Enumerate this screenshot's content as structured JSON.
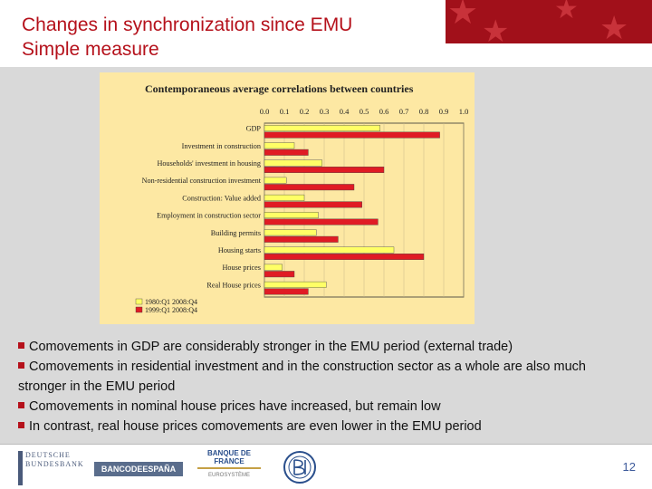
{
  "slide": {
    "title_line1": "Changes in synchronization since EMU",
    "title_line2": "Simple measure",
    "page_number": "12"
  },
  "colors": {
    "title_red": "#b5111b",
    "series1_fill": "#ffff66",
    "series2_fill": "#e01b24",
    "chart_bg": "#fde8a3",
    "grey_band": "#d9d9d9"
  },
  "bullets": [
    "Comovements in GDP are considerably stronger in the EMU period (external trade)",
    "Comovements in residential investment and in the construction sector as a whole are also much stronger in the EMU period",
    "Comovements in nominal house prices have increased, but remain low",
    "In contrast, real house prices comovements are even lower in the EMU period"
  ],
  "footer": {
    "logo_buba_line1": "DEUTSCHE",
    "logo_buba_line2": "BUNDESBANK",
    "logo_bde": "BANCODEESPAÑA",
    "logo_bdf_line1": "BANQUE DE FRANCE",
    "logo_bdf_line2": "EUROSYSTÈME",
    "logo_bdi_icon": "banca-d-italia-monogram-icon"
  },
  "chart_data": {
    "type": "bar",
    "orientation": "horizontal",
    "title": "Contemporaneous average correlations between countries",
    "xlim": [
      0,
      1
    ],
    "tick_labels": [
      "0.0",
      "0.1",
      "0.2",
      "0.3",
      "0.4",
      "0.5",
      "0.6",
      "0.7",
      "0.8",
      "0.9",
      "1.0"
    ],
    "grid": true,
    "legend_position": "bottom-left",
    "categories": [
      "GDP",
      "Investment in construction",
      "Households' investment in housing",
      "Non-residential construction investment",
      "Construction: Value added",
      "Employment in construction sector",
      "Building permits",
      "Housing starts",
      "House prices",
      "Real House prices"
    ],
    "series": [
      {
        "name": "1980:Q1 2008:Q4",
        "color": "#ffff66",
        "values": [
          0.58,
          0.15,
          0.29,
          0.11,
          0.2,
          0.27,
          0.26,
          0.65,
          0.09,
          0.31
        ]
      },
      {
        "name": "1999:Q1 2008:Q4",
        "color": "#e01b24",
        "values": [
          0.88,
          0.22,
          0.6,
          0.45,
          0.49,
          0.57,
          0.37,
          0.8,
          0.15,
          0.22
        ]
      }
    ]
  }
}
